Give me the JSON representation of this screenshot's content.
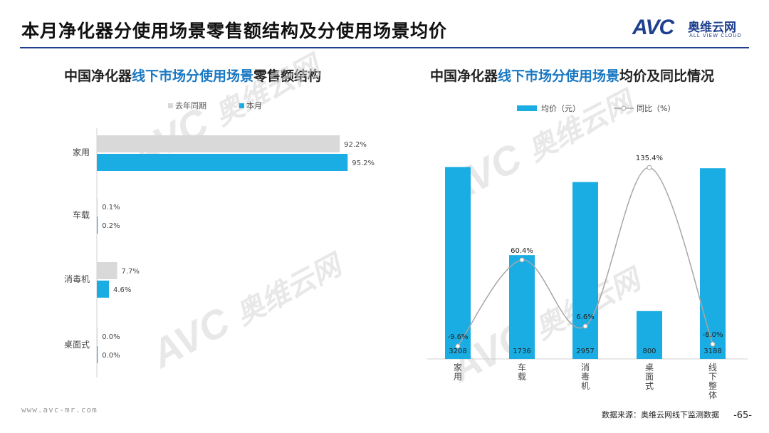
{
  "page": {
    "title": "本月净化器分使用场景零售额结构及分使用场景均价",
    "footer_url": "www.avc-mr.com",
    "footer_source": "数据来源：奥维云网线下监测数据",
    "page_number": "-65-"
  },
  "logo": {
    "mark": "AVC",
    "cn": "奥维云网",
    "en": "ALL VIEW CLOUD"
  },
  "left_chart_title": {
    "part1": "中国净化器",
    "part2": "线下市场分使用场景",
    "part3": "零售额结构"
  },
  "right_chart_title": {
    "part1": "中国净化器",
    "part2": "线下市场分使用场景",
    "part3": "均价及同比情况"
  },
  "watermark": {
    "mark": "AVC",
    "cn": "奥维云网",
    "en": "ALL VIEW CLOUD"
  },
  "colors": {
    "current": "#1aade3",
    "last_year": "#d9d9d9",
    "line": "#a6a6a6",
    "accent": "#1f3f8f"
  },
  "chart_data": [
    {
      "type": "bar",
      "orientation": "horizontal",
      "categories": [
        "家用",
        "车载",
        "消毒机",
        "桌面式"
      ],
      "series": [
        {
          "name": "去年同期",
          "values": [
            92.2,
            0.1,
            7.7,
            0.0
          ],
          "labels": [
            "92.2%",
            "0.1%",
            "7.7%",
            "0.0%"
          ]
        },
        {
          "name": "本月",
          "values": [
            95.2,
            0.2,
            4.6,
            0.0
          ],
          "labels": [
            "95.2%",
            "0.2%",
            "4.6%",
            "0.0%"
          ]
        }
      ],
      "legend": "top",
      "xlim": [
        0,
        100
      ]
    },
    {
      "type": "bar+line",
      "categories": [
        "家用",
        "车载",
        "消毒机",
        "桌面式",
        "线下整体"
      ],
      "bar_series": {
        "name": "均价（元）",
        "values": [
          3208,
          1736,
          2957,
          800,
          3188
        ],
        "labels": [
          "3208",
          "1736",
          "2957",
          "800",
          "3188"
        ]
      },
      "line_series": {
        "name": "同比（%）",
        "values": [
          -9.6,
          60.4,
          6.6,
          135.4,
          -8.0
        ],
        "labels": [
          "-9.6%",
          "60.4%",
          "6.6%",
          "135.4%",
          "-8.0%"
        ]
      },
      "legend": "top",
      "bar_ylim": [
        0,
        3500
      ],
      "line_ylim": [
        -20,
        150
      ]
    }
  ]
}
